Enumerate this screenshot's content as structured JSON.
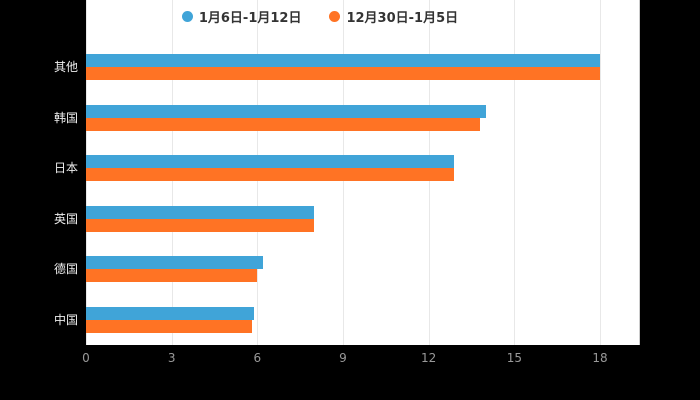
{
  "chart_data": {
    "type": "bar",
    "orientation": "horizontal",
    "categories": [
      "其他",
      "韩国",
      "日本",
      "英国",
      "德国",
      "中国"
    ],
    "series": [
      {
        "name": "1月6日-1月12日",
        "color": "#40a4d8",
        "values": [
          18,
          14,
          12.9,
          8,
          6.2,
          5.9
        ]
      },
      {
        "name": "12月30日-1月5日",
        "color": "#ff7324",
        "values": [
          18,
          13.8,
          12.9,
          8,
          6,
          5.8
        ]
      }
    ],
    "xlabel": "",
    "ylabel": "",
    "xlim": [
      0,
      18
    ],
    "xticks": [
      0,
      3,
      6,
      9,
      12,
      15,
      18
    ],
    "grid": true,
    "legend_position": "top",
    "plot_background": "#ffffff",
    "page_background": "#000000",
    "tick_color": "#999999",
    "category_label_color": "#eeeeee"
  }
}
